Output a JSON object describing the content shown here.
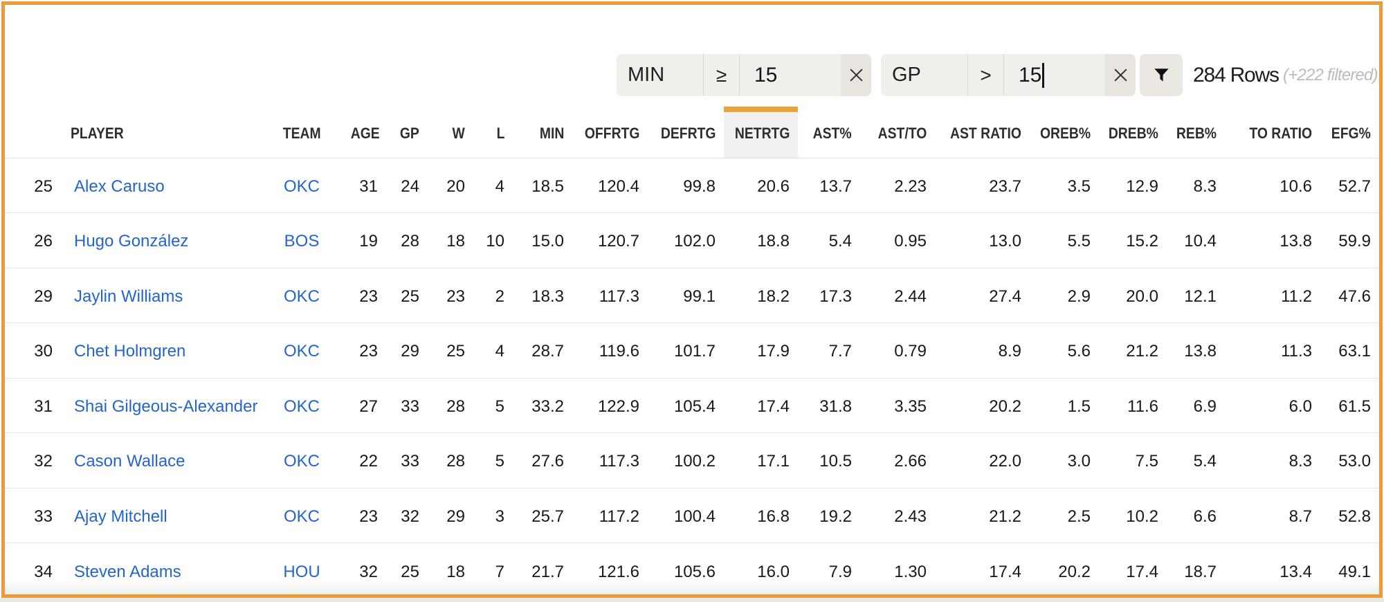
{
  "colors": {
    "page_border_orange": "#ef9a38",
    "highlight_column_orange": "#e5a43d",
    "link_blue": "#2364cf"
  },
  "toolbar": {
    "filters": [
      {
        "field": "MIN",
        "operator": "≥",
        "value": "15",
        "focused": false
      },
      {
        "field": "GP",
        "operator": ">",
        "value": "15",
        "focused": true
      }
    ],
    "rows_count": "284 Rows",
    "filtered_note": "(+222 filtered)"
  },
  "table": {
    "highlighted_column": "NETRTG",
    "columns": [
      {
        "key": "rank",
        "label": ""
      },
      {
        "key": "player",
        "label": "PLAYER"
      },
      {
        "key": "team",
        "label": "TEAM"
      },
      {
        "key": "age",
        "label": "AGE"
      },
      {
        "key": "gp",
        "label": "GP"
      },
      {
        "key": "w",
        "label": "W"
      },
      {
        "key": "l",
        "label": "L"
      },
      {
        "key": "min",
        "label": "MIN"
      },
      {
        "key": "offrtg",
        "label": "OFFRTG"
      },
      {
        "key": "defrtg",
        "label": "DEFRTG"
      },
      {
        "key": "netrtg",
        "label": "NETRTG"
      },
      {
        "key": "ast_pct",
        "label": "AST%"
      },
      {
        "key": "ast_to",
        "label": "AST/TO"
      },
      {
        "key": "ast_ratio",
        "label": "AST RATIO"
      },
      {
        "key": "oreb_pct",
        "label": "OREB%"
      },
      {
        "key": "dreb_pct",
        "label": "DREB%"
      },
      {
        "key": "reb_pct",
        "label": "REB%"
      },
      {
        "key": "to_ratio",
        "label": "TO RATIO"
      },
      {
        "key": "efg_pct",
        "label": "EFG%"
      }
    ],
    "rows": [
      {
        "rank": "25",
        "player": "Alex Caruso",
        "team": "OKC",
        "age": "31",
        "gp": "24",
        "w": "20",
        "l": "4",
        "min": "18.5",
        "offrtg": "120.4",
        "defrtg": "99.8",
        "netrtg": "20.6",
        "ast_pct": "13.7",
        "ast_to": "2.23",
        "ast_ratio": "23.7",
        "oreb_pct": "3.5",
        "dreb_pct": "12.9",
        "reb_pct": "8.3",
        "to_ratio": "10.6",
        "efg_pct": "52.7"
      },
      {
        "rank": "26",
        "player": "Hugo González",
        "team": "BOS",
        "age": "19",
        "gp": "28",
        "w": "18",
        "l": "10",
        "min": "15.0",
        "offrtg": "120.7",
        "defrtg": "102.0",
        "netrtg": "18.8",
        "ast_pct": "5.4",
        "ast_to": "0.95",
        "ast_ratio": "13.0",
        "oreb_pct": "5.5",
        "dreb_pct": "15.2",
        "reb_pct": "10.4",
        "to_ratio": "13.8",
        "efg_pct": "59.9"
      },
      {
        "rank": "29",
        "player": "Jaylin Williams",
        "team": "OKC",
        "age": "23",
        "gp": "25",
        "w": "23",
        "l": "2",
        "min": "18.3",
        "offrtg": "117.3",
        "defrtg": "99.1",
        "netrtg": "18.2",
        "ast_pct": "17.3",
        "ast_to": "2.44",
        "ast_ratio": "27.4",
        "oreb_pct": "2.9",
        "dreb_pct": "20.0",
        "reb_pct": "12.1",
        "to_ratio": "11.2",
        "efg_pct": "47.6"
      },
      {
        "rank": "30",
        "player": "Chet Holmgren",
        "team": "OKC",
        "age": "23",
        "gp": "29",
        "w": "25",
        "l": "4",
        "min": "28.7",
        "offrtg": "119.6",
        "defrtg": "101.7",
        "netrtg": "17.9",
        "ast_pct": "7.7",
        "ast_to": "0.79",
        "ast_ratio": "8.9",
        "oreb_pct": "5.6",
        "dreb_pct": "21.2",
        "reb_pct": "13.8",
        "to_ratio": "11.3",
        "efg_pct": "63.1"
      },
      {
        "rank": "31",
        "player": "Shai Gilgeous-Alexander",
        "team": "OKC",
        "age": "27",
        "gp": "33",
        "w": "28",
        "l": "5",
        "min": "33.2",
        "offrtg": "122.9",
        "defrtg": "105.4",
        "netrtg": "17.4",
        "ast_pct": "31.8",
        "ast_to": "3.35",
        "ast_ratio": "20.2",
        "oreb_pct": "1.5",
        "dreb_pct": "11.6",
        "reb_pct": "6.9",
        "to_ratio": "6.0",
        "efg_pct": "61.5"
      },
      {
        "rank": "32",
        "player": "Cason Wallace",
        "team": "OKC",
        "age": "22",
        "gp": "33",
        "w": "28",
        "l": "5",
        "min": "27.6",
        "offrtg": "117.3",
        "defrtg": "100.2",
        "netrtg": "17.1",
        "ast_pct": "10.5",
        "ast_to": "2.66",
        "ast_ratio": "22.0",
        "oreb_pct": "3.0",
        "dreb_pct": "7.5",
        "reb_pct": "5.4",
        "to_ratio": "8.3",
        "efg_pct": "53.0"
      },
      {
        "rank": "33",
        "player": "Ajay Mitchell",
        "team": "OKC",
        "age": "23",
        "gp": "32",
        "w": "29",
        "l": "3",
        "min": "25.7",
        "offrtg": "117.2",
        "defrtg": "100.4",
        "netrtg": "16.8",
        "ast_pct": "19.2",
        "ast_to": "2.43",
        "ast_ratio": "21.2",
        "oreb_pct": "2.5",
        "dreb_pct": "10.2",
        "reb_pct": "6.6",
        "to_ratio": "8.7",
        "efg_pct": "52.8"
      },
      {
        "rank": "34",
        "player": "Steven Adams",
        "team": "HOU",
        "age": "32",
        "gp": "25",
        "w": "18",
        "l": "7",
        "min": "21.7",
        "offrtg": "121.6",
        "defrtg": "105.6",
        "netrtg": "16.0",
        "ast_pct": "7.9",
        "ast_to": "1.30",
        "ast_ratio": "17.4",
        "oreb_pct": "20.2",
        "dreb_pct": "17.4",
        "reb_pct": "18.7",
        "to_ratio": "13.4",
        "efg_pct": "49.1"
      }
    ]
  }
}
